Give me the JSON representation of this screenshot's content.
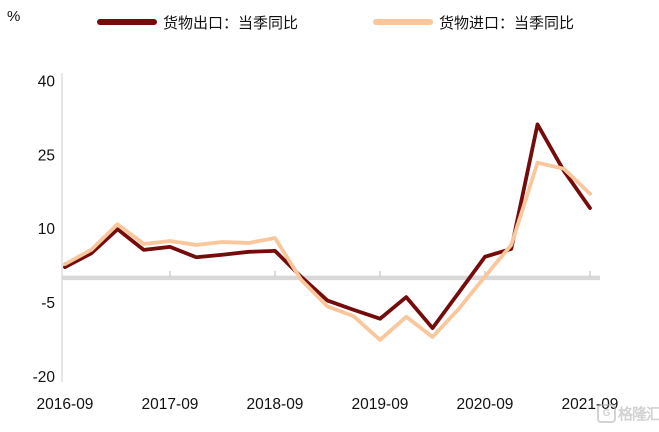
{
  "unit_label": "%",
  "legend": [
    {
      "label": "货物出口：当季同比",
      "color": "#750C0C"
    },
    {
      "label": "货物进口：当季同比",
      "color": "#F9C79B"
    }
  ],
  "watermark": {
    "icon_letter": "G",
    "text": "格隆汇"
  },
  "chart_data": {
    "type": "line",
    "title": "",
    "xlabel": "",
    "ylabel": "%",
    "ylim": [
      -20,
      40
    ],
    "y_ticks": [
      40,
      25,
      10,
      -5,
      -20
    ],
    "x_tick_labels": [
      "2016-09",
      "2017-09",
      "2018-09",
      "2019-09",
      "2020-09",
      "2021-09"
    ],
    "grid": "zero-line-only",
    "legend_position": "top",
    "colors": {
      "export_line": "#750C0C",
      "import_line": "#F9C79B",
      "zero_line": "#D8D8D8",
      "axis_line": "#D9D9D9",
      "tick_mark": "#CFCFCF",
      "text": "#111111",
      "background": "#FFFFFF"
    },
    "categories": [
      "2016-09",
      "2016-12",
      "2017-03",
      "2017-06",
      "2017-09",
      "2017-12",
      "2018-03",
      "2018-06",
      "2018-09",
      "2018-12",
      "2019-03",
      "2019-06",
      "2019-09",
      "2019-12",
      "2020-03",
      "2020-06",
      "2020-09",
      "2020-12",
      "2021-03",
      "2021-06",
      "2021-09"
    ],
    "series": [
      {
        "name": "货物出口：当季同比",
        "color": "#750C0C",
        "values": [
          2.2,
          5.0,
          9.9,
          5.7,
          6.3,
          4.2,
          4.7,
          5.3,
          5.5,
          0.2,
          -4.6,
          -6.5,
          -8.3,
          -3.9,
          -10.2,
          -3.0,
          4.3,
          5.9,
          31.2,
          21.8,
          14.2
        ]
      },
      {
        "name": "货物进口：当季同比",
        "color": "#F9C79B",
        "values": [
          2.8,
          5.7,
          10.9,
          6.9,
          7.5,
          6.7,
          7.3,
          7.1,
          8.1,
          -0.4,
          -5.8,
          -7.8,
          -12.6,
          -7.9,
          -12.0,
          -6.3,
          0.3,
          6.7,
          23.4,
          22.2,
          17.1
        ]
      }
    ]
  }
}
